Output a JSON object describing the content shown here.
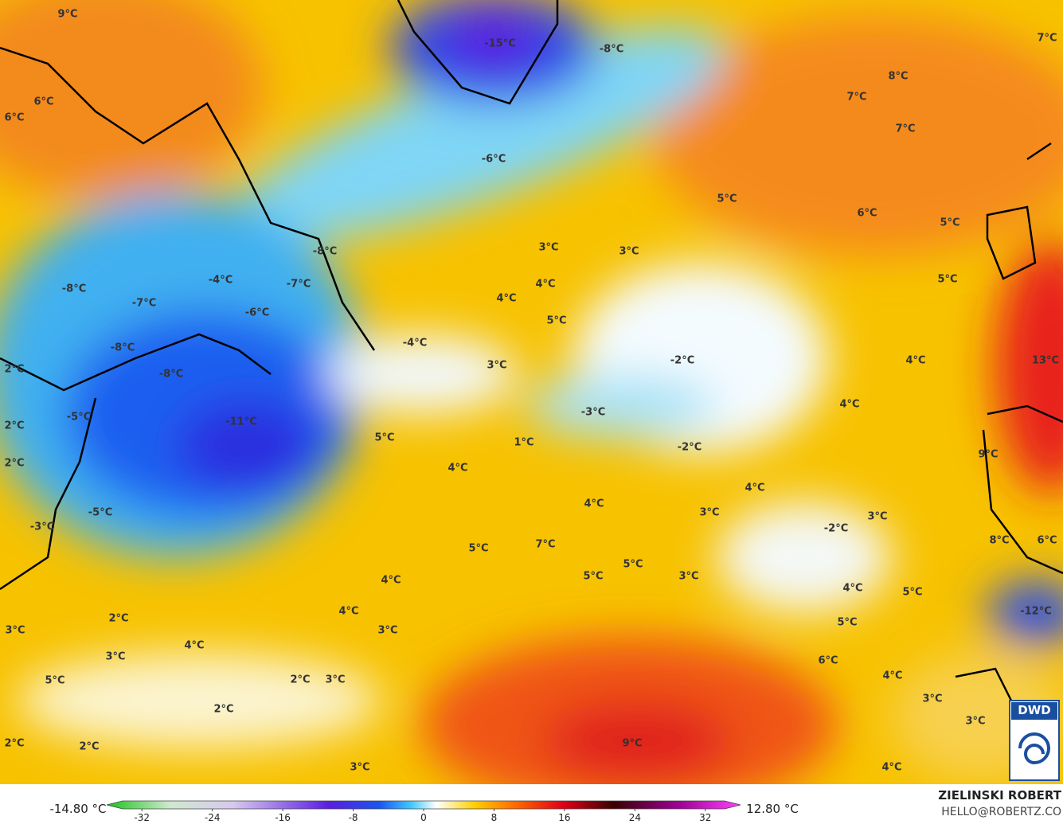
{
  "map": {
    "labels": [
      "9°C",
      "-15°C",
      "-8°C",
      "7°C",
      "8°C",
      "7°C",
      "6°C",
      "6°C",
      "7°C",
      "-6°C",
      "5°C",
      "6°C",
      "5°C",
      "3°C",
      "3°C",
      "-8°C",
      "-4°C",
      "-7°C",
      "5°C",
      "-8°C",
      "4°C",
      "-7°C",
      "4°C",
      "-6°C",
      "5°C",
      "-8°C",
      "-4°C",
      "4°C",
      "-2°C",
      "13°C",
      "3°C",
      "2°C",
      "-8°C",
      "4°C",
      "-3°C",
      "-5°C",
      "-11°C",
      "2°C",
      "5°C",
      "1°C",
      "-2°C",
      "9°C",
      "2°C",
      "4°C",
      "4°C",
      "4°C",
      "3°C",
      "-5°C",
      "3°C",
      "-3°C",
      "-2°C",
      "7°C",
      "8°C",
      "6°C",
      "5°C",
      "5°C",
      "5°C",
      "3°C",
      "4°C",
      "4°C",
      "5°C",
      "4°C",
      "-12°C",
      "2°C",
      "5°C",
      "3°C",
      "3°C",
      "4°C",
      "3°C",
      "6°C",
      "4°C",
      "5°C",
      "2°C",
      "3°C",
      "2°C",
      "3°C",
      "3°C",
      "9°C",
      "2°C",
      "2°C",
      "3°C",
      "4°C"
    ],
    "colorbar": {
      "min_label": "-14.80 °C",
      "max_label": "12.80 °C",
      "range": [
        -36,
        36
      ],
      "ticks": [
        -32,
        -24,
        -16,
        -8,
        0,
        8,
        16,
        24,
        32
      ]
    },
    "credit": {
      "name": "ZIELINSKI ROBERT",
      "email": "HELLO@ROBERTZ.CO",
      "logo": "DWD"
    }
  }
}
